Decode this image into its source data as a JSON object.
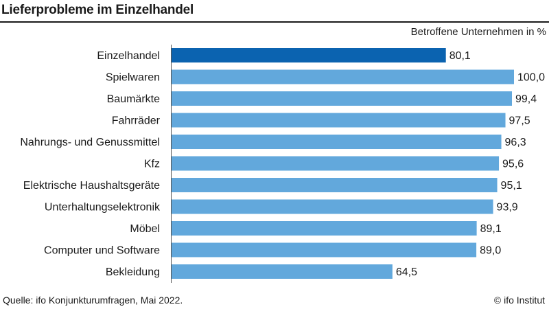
{
  "chart_data": {
    "type": "bar",
    "orientation": "horizontal",
    "title": "Lieferprobleme im Einzelhandel",
    "unit_label": "Betroffene Unternehmen in %",
    "categories": [
      "Einzelhandel",
      "Spielwaren",
      "Baumärkte",
      "Fahrräder",
      "Nahrungs- und Genussmittel",
      "Kfz",
      "Elektrische Haushaltsgeräte",
      "Unterhaltungselektronik",
      "Möbel",
      "Computer und Software",
      "Bekleidung"
    ],
    "values": [
      80.1,
      100.0,
      99.4,
      97.5,
      96.3,
      95.6,
      95.1,
      93.9,
      89.1,
      89.0,
      64.5
    ],
    "value_labels": [
      "80,1",
      "100,0",
      "99,4",
      "97,5",
      "96,3",
      "95,6",
      "95,1",
      "93,9",
      "89,1",
      "89,0",
      "64,5"
    ],
    "xlim": [
      0,
      100
    ],
    "grid": false,
    "colors": {
      "highlight": "#0b63b0",
      "bar": "#62a8dc"
    },
    "highlight_index": 0
  },
  "footer": {
    "source": "Quelle: ifo Konjunkturumfragen, Mai 2022.",
    "copyright": "© ifo Institut"
  }
}
